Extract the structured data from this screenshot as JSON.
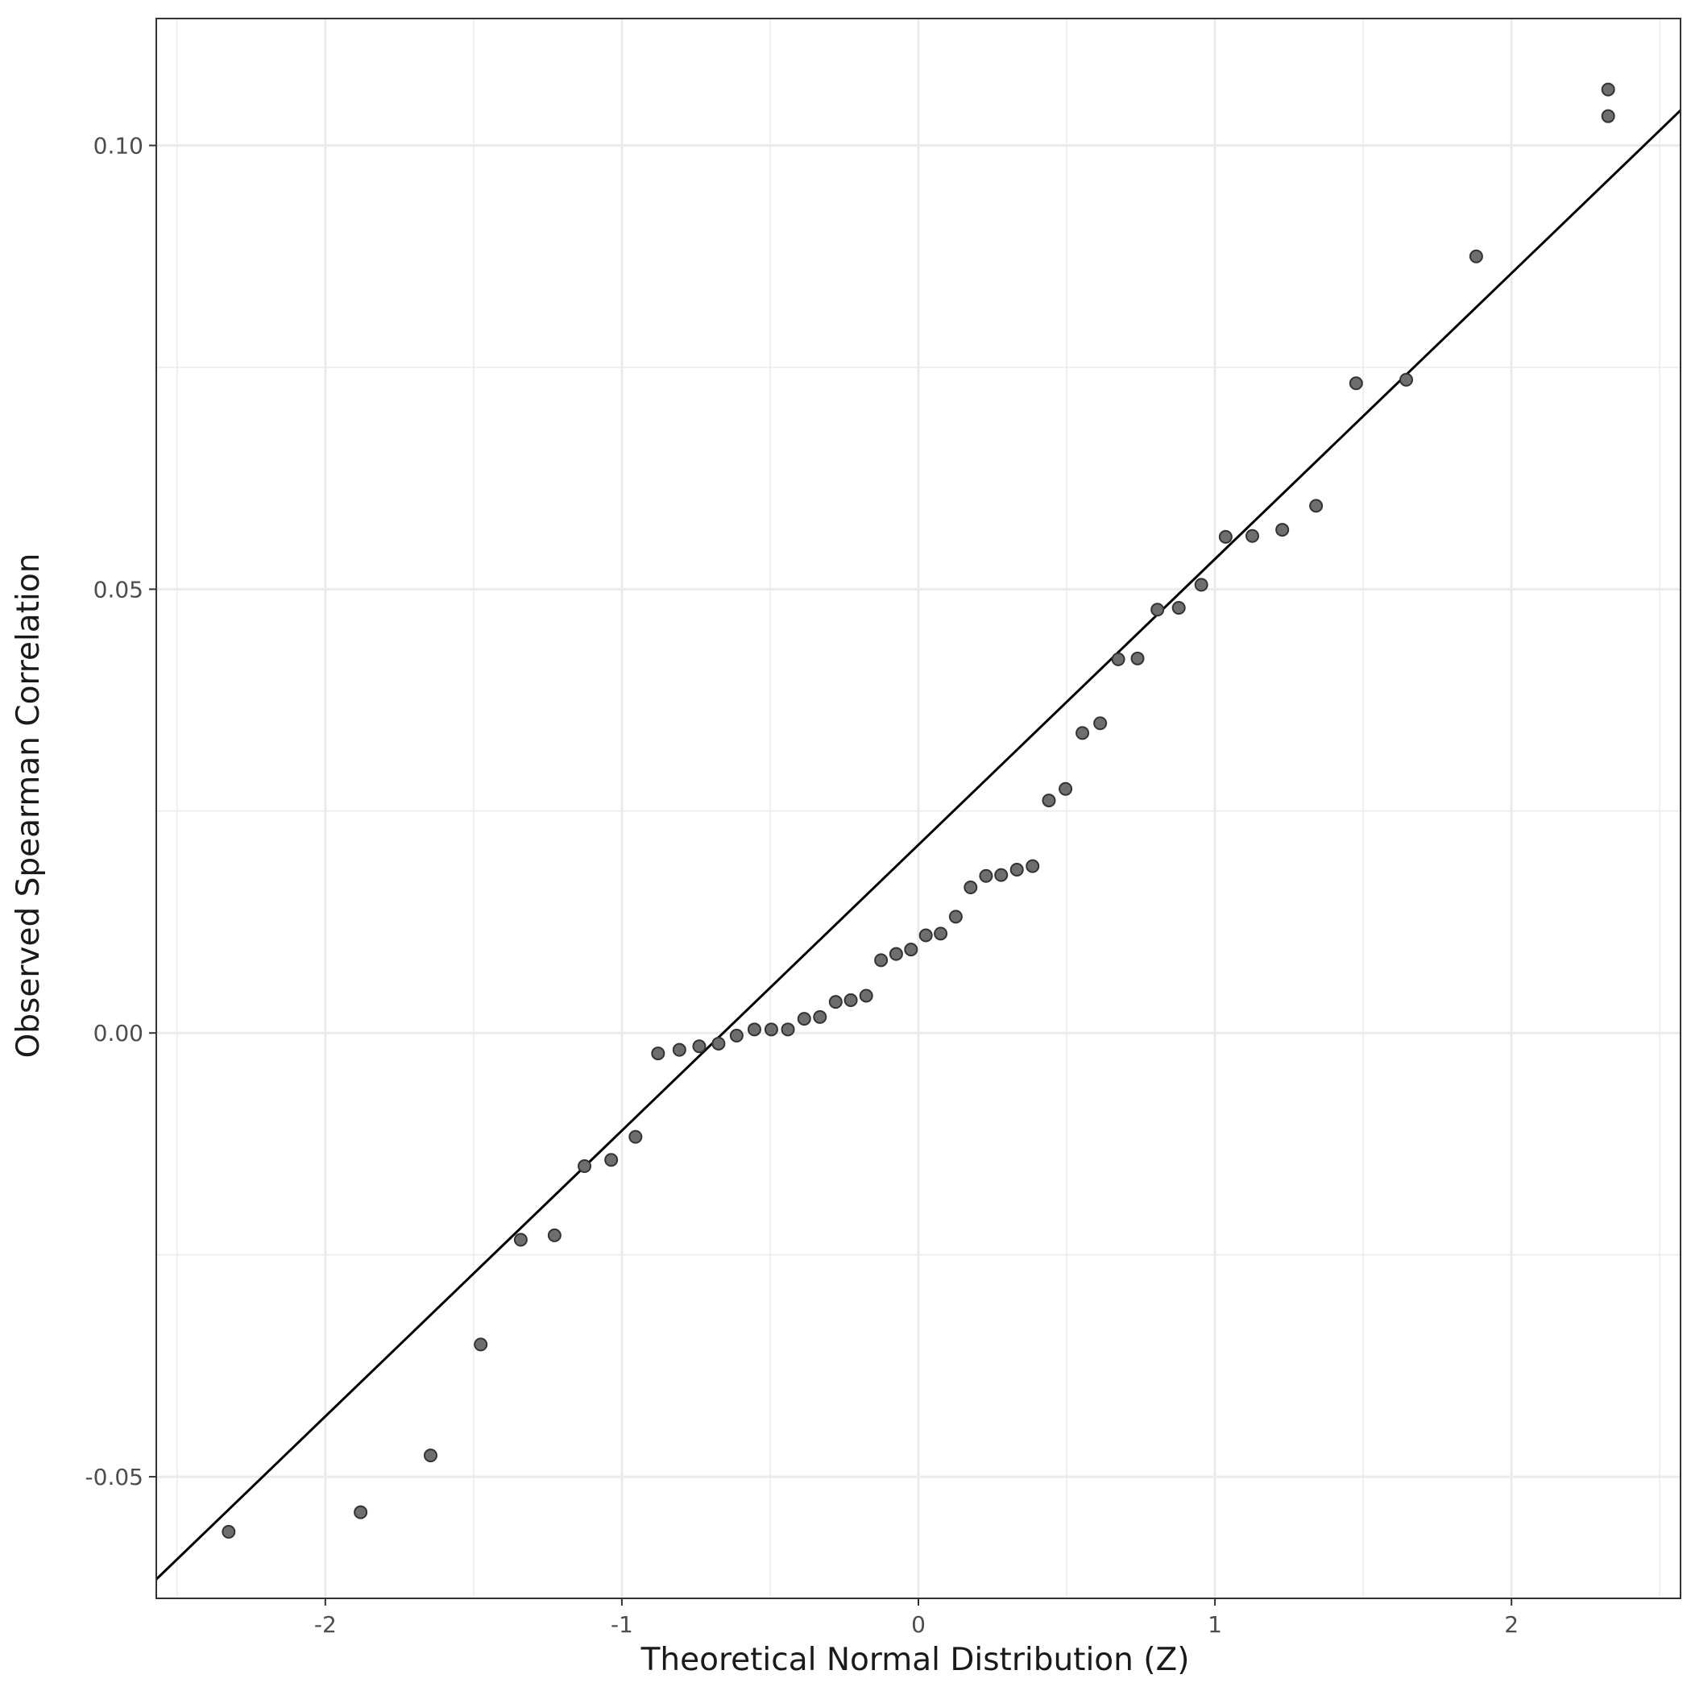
{
  "chart_data": {
    "type": "scatter",
    "xlabel": "Theoretical Normal Distribution (Z)",
    "ylabel": "Observed Spearman Correlation",
    "xlim": [
      -2.57,
      2.57
    ],
    "ylim": [
      -0.0637,
      0.1143
    ],
    "x_ticks": [
      -2,
      -1,
      0,
      1,
      2
    ],
    "x_tick_labels": [
      "-2",
      "-1",
      "0",
      "1",
      "2"
    ],
    "y_ticks": [
      -0.05,
      0.0,
      0.05,
      0.1
    ],
    "y_tick_labels": [
      "-0.05",
      "0.00",
      "0.05",
      "0.10"
    ],
    "grid": true,
    "points": [
      {
        "x": -2.326,
        "y": -0.0562
      },
      {
        "x": -1.881,
        "y": -0.054
      },
      {
        "x": -1.645,
        "y": -0.0476
      },
      {
        "x": -1.476,
        "y": -0.0351
      },
      {
        "x": -1.341,
        "y": -0.0233
      },
      {
        "x": -1.227,
        "y": -0.0228
      },
      {
        "x": -1.126,
        "y": -0.015
      },
      {
        "x": -1.036,
        "y": -0.0143
      },
      {
        "x": -0.954,
        "y": -0.0117
      },
      {
        "x": -0.878,
        "y": -0.0023
      },
      {
        "x": -0.806,
        "y": -0.0019
      },
      {
        "x": -0.739,
        "y": -0.0015
      },
      {
        "x": -0.674,
        "y": -0.0012
      },
      {
        "x": -0.613,
        "y": -0.0003
      },
      {
        "x": -0.553,
        "y": 0.0004
      },
      {
        "x": -0.496,
        "y": 0.0004
      },
      {
        "x": -0.44,
        "y": 0.0004
      },
      {
        "x": -0.385,
        "y": 0.0016
      },
      {
        "x": -0.332,
        "y": 0.0018
      },
      {
        "x": -0.279,
        "y": 0.0035
      },
      {
        "x": -0.228,
        "y": 0.0037
      },
      {
        "x": -0.176,
        "y": 0.0042
      },
      {
        "x": -0.126,
        "y": 0.0082
      },
      {
        "x": -0.075,
        "y": 0.0089
      },
      {
        "x": -0.025,
        "y": 0.0094
      },
      {
        "x": 0.025,
        "y": 0.011
      },
      {
        "x": 0.075,
        "y": 0.0112
      },
      {
        "x": 0.126,
        "y": 0.0131
      },
      {
        "x": 0.176,
        "y": 0.0164
      },
      {
        "x": 0.228,
        "y": 0.0177
      },
      {
        "x": 0.279,
        "y": 0.0178
      },
      {
        "x": 0.332,
        "y": 0.0184
      },
      {
        "x": 0.385,
        "y": 0.0188
      },
      {
        "x": 0.44,
        "y": 0.0262
      },
      {
        "x": 0.496,
        "y": 0.0275
      },
      {
        "x": 0.553,
        "y": 0.0338
      },
      {
        "x": 0.613,
        "y": 0.0349
      },
      {
        "x": 0.674,
        "y": 0.0421
      },
      {
        "x": 0.739,
        "y": 0.0422
      },
      {
        "x": 0.806,
        "y": 0.0477
      },
      {
        "x": 0.878,
        "y": 0.0479
      },
      {
        "x": 0.954,
        "y": 0.0505
      },
      {
        "x": 1.036,
        "y": 0.0559
      },
      {
        "x": 1.126,
        "y": 0.056
      },
      {
        "x": 1.227,
        "y": 0.0567
      },
      {
        "x": 1.341,
        "y": 0.0594
      },
      {
        "x": 1.476,
        "y": 0.0732
      },
      {
        "x": 1.645,
        "y": 0.0736
      },
      {
        "x": 1.881,
        "y": 0.0875
      },
      {
        "x": 2.326,
        "y": 0.1033
      },
      {
        "x": 2.326,
        "y": 0.1063
      }
    ],
    "reference_line": {
      "intercept": 0.0212,
      "slope": 0.0322
    },
    "colors": {
      "point_fill": "#6e6e6e",
      "point_stroke": "#333333",
      "line": "#000000",
      "grid": "#ebebeb",
      "panel_border": "#333333"
    }
  }
}
